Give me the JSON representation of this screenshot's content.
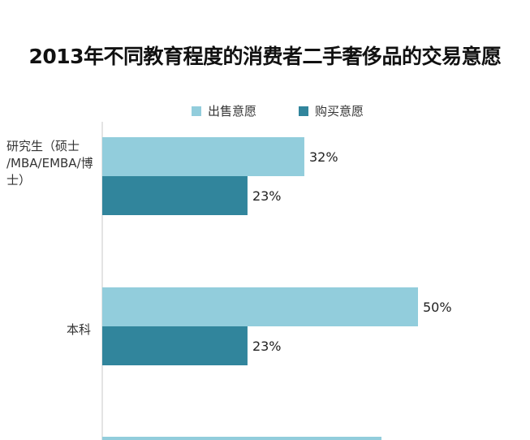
{
  "chart_data": {
    "type": "bar",
    "orientation": "horizontal",
    "title": "2013年不同教育程度的消费者二手奢侈品的交易意愿",
    "categories": [
      "研究生（硕士/MBA/EMBA/博士）",
      "本科",
      ""
    ],
    "category_display": [
      [
        "研究生（硕士",
        "/MBA/EMBA/博",
        "士）"
      ],
      [
        "本科"
      ],
      []
    ],
    "series": [
      {
        "name": "出售意愿",
        "color": "#92cddc",
        "values": [
          32,
          50,
          null
        ],
        "labels": [
          "32%",
          "50%",
          ""
        ]
      },
      {
        "name": "购买意愿",
        "color": "#31859c",
        "values": [
          23,
          23,
          null
        ],
        "labels": [
          "23%",
          "23%",
          ""
        ]
      }
    ],
    "legend_position": "top",
    "grid": false
  }
}
